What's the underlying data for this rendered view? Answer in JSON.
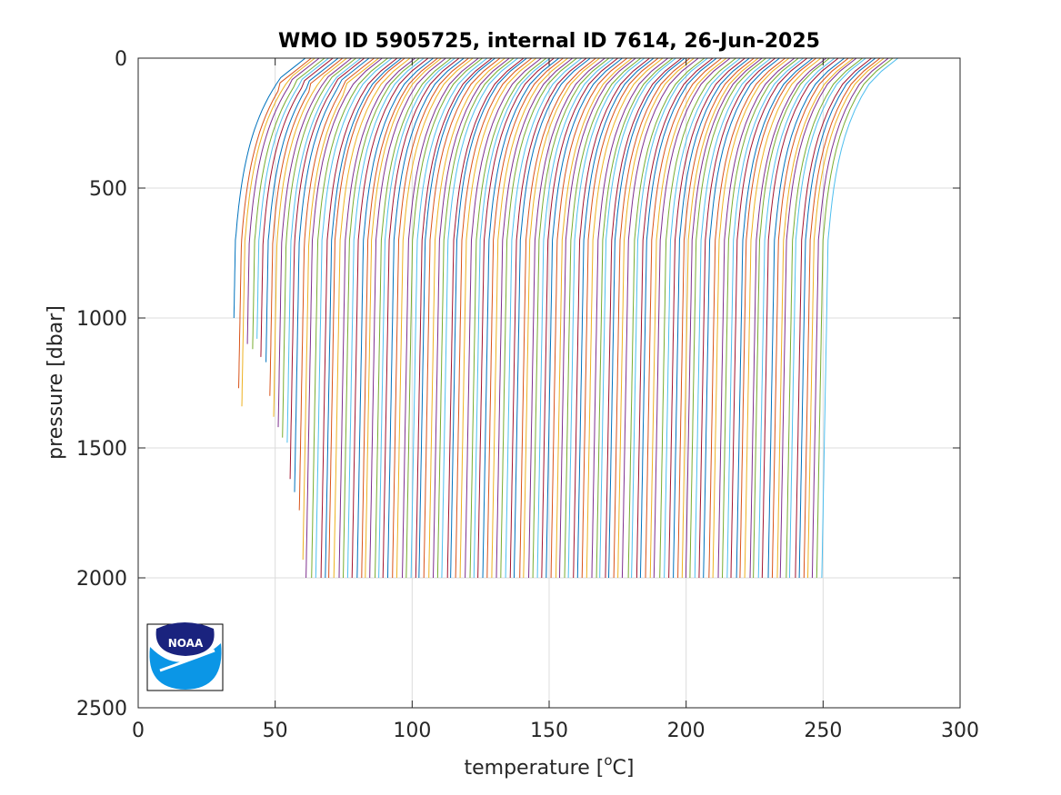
{
  "chart_data": {
    "type": "line",
    "title": "WMO ID 5905725, internal ID 7614, 26-Jun-2025",
    "xlabel": "temperature [",
    "xlabel_unit_sup": "o",
    "xlabel_unit_end": "C]",
    "ylabel": "pressure [dbar]",
    "xlim": [
      0,
      300
    ],
    "ylim": [
      0,
      2500
    ],
    "y_reversed": true,
    "grid": true,
    "x_ticks": [
      0,
      50,
      100,
      150,
      200,
      250,
      300
    ],
    "y_ticks": [
      0,
      500,
      1000,
      1500,
      2000,
      2500
    ],
    "x_tick_labels": [
      "0",
      "50",
      "100",
      "150",
      "200",
      "250",
      "300"
    ],
    "y_tick_labels": [
      "0",
      "500",
      "1000",
      "1500",
      "2000",
      "2500"
    ],
    "series_description": "Waterfall of temperature profiles, each offset successively along the temperature axis",
    "profile_count": 132,
    "first_profile_offset_temp": 37,
    "last_profile_offset_temp": 253,
    "profile_deep_pressure": 2000,
    "colors": [
      "#0072BD",
      "#D95319",
      "#EDB120",
      "#7E2F8E",
      "#77AC30",
      "#4DBEEE",
      "#A2142F"
    ]
  },
  "logo": {
    "name": "NOAA",
    "text": "NOAA"
  }
}
